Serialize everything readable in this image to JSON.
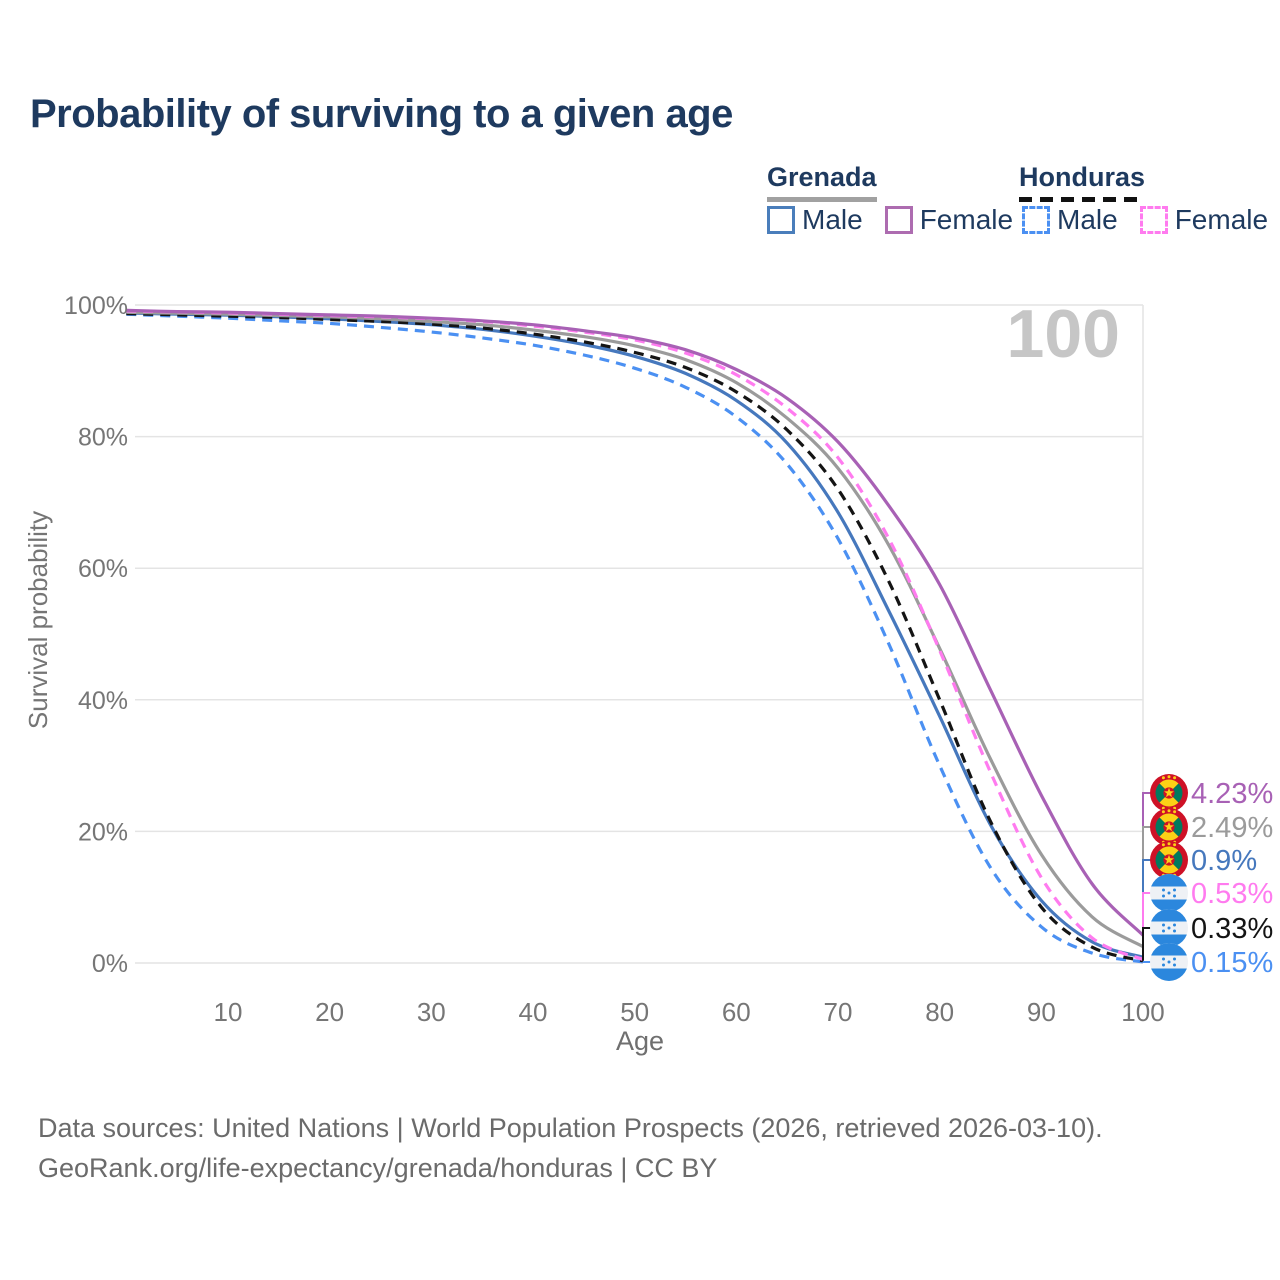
{
  "title": "Probability of surviving to a given age",
  "watermark": "100",
  "legend": {
    "groups": [
      {
        "label": "Grenada",
        "line_style": "solid",
        "underline_color": "#a1a1a1",
        "items": [
          {
            "label": "Male",
            "color": "#4a7ebb",
            "dashed": false
          },
          {
            "label": "Female",
            "color": "#ad6cb0",
            "dashed": false
          }
        ]
      },
      {
        "label": "Honduras",
        "line_style": "dashed",
        "underline_color": "#111111",
        "items": [
          {
            "label": "Male",
            "color": "#4b90f2",
            "dashed": true
          },
          {
            "label": "Female",
            "color": "#ff7bef",
            "dashed": true
          }
        ]
      }
    ]
  },
  "chart_data": {
    "type": "line",
    "title": "Probability of surviving to a given age",
    "xlabel": "Age",
    "ylabel": "Survival probability",
    "xlim": [
      0,
      100
    ],
    "ylim": [
      0,
      100
    ],
    "grid": "horizontal",
    "x_ticks": [
      10,
      20,
      30,
      40,
      50,
      60,
      70,
      80,
      90,
      100
    ],
    "y_ticks": [
      {
        "value": 0,
        "label": "0%"
      },
      {
        "value": 20,
        "label": "20%"
      },
      {
        "value": 40,
        "label": "40%"
      },
      {
        "value": 60,
        "label": "60%"
      },
      {
        "value": 80,
        "label": "80%"
      },
      {
        "value": 100,
        "label": "100%"
      }
    ],
    "ages": [
      0,
      5,
      10,
      15,
      20,
      25,
      30,
      35,
      40,
      45,
      50,
      55,
      60,
      65,
      70,
      75,
      80,
      85,
      90,
      95,
      100
    ],
    "series": [
      {
        "id": "honduras-male",
        "name": "Honduras Male",
        "country": "Honduras",
        "flag": "honduras",
        "color": "#4b90f2",
        "dashed": true,
        "end_label": "0.15%",
        "values": [
          98.6,
          98.3,
          98.0,
          97.6,
          97.2,
          96.6,
          95.9,
          95.0,
          93.9,
          92.4,
          90.4,
          87.5,
          83.0,
          75.8,
          64.5,
          48.5,
          30.0,
          14.5,
          5.5,
          1.5,
          0.15
        ]
      },
      {
        "id": "grenada-male",
        "name": "Grenada Male",
        "country": "Grenada",
        "flag": "grenada",
        "color": "#4678bd",
        "dashed": false,
        "end_label": "0.9%",
        "values": [
          98.8,
          98.6,
          98.45,
          98.2,
          97.9,
          97.5,
          97.0,
          96.3,
          95.3,
          94.0,
          92.2,
          89.6,
          85.5,
          79.0,
          68.5,
          53.5,
          37.5,
          21.0,
          9.5,
          3.2,
          0.9
        ]
      },
      {
        "id": "honduras-all",
        "name": "Honduras",
        "country": "Honduras",
        "flag": "honduras",
        "color": "#141414",
        "dashed": true,
        "end_label": "0.33%",
        "values": [
          98.7,
          98.5,
          98.3,
          98.1,
          97.8,
          97.5,
          97.1,
          96.5,
          95.6,
          94.4,
          92.8,
          90.5,
          86.8,
          81.0,
          72.0,
          58.0,
          40.0,
          21.5,
          8.5,
          2.4,
          0.33
        ]
      },
      {
        "id": "grenada-all",
        "name": "Grenada",
        "country": "Grenada",
        "flag": "grenada",
        "color": "#9b9b9b",
        "dashed": false,
        "end_label": "2.49%",
        "values": [
          98.9,
          98.75,
          98.6,
          98.4,
          98.2,
          97.9,
          97.5,
          97.0,
          96.2,
          95.2,
          93.8,
          91.7,
          88.2,
          82.8,
          75.2,
          63.5,
          47.8,
          31.0,
          16.5,
          7.0,
          2.49
        ]
      },
      {
        "id": "honduras-female",
        "name": "Honduras Female",
        "country": "Honduras",
        "flag": "honduras",
        "color": "#ff7bef",
        "dashed": true,
        "end_label": "0.53%",
        "values": [
          99.1,
          98.95,
          98.8,
          98.6,
          98.4,
          98.2,
          97.9,
          97.5,
          96.8,
          95.9,
          94.7,
          92.7,
          89.4,
          84.3,
          76.8,
          64.5,
          47.5,
          29.0,
          13.0,
          3.8,
          0.53
        ]
      },
      {
        "id": "grenada-female",
        "name": "Grenada Female",
        "country": "Grenada",
        "flag": "grenada",
        "color": "#a861b5",
        "dashed": false,
        "end_label": "4.23%",
        "values": [
          99.2,
          99.0,
          98.9,
          98.7,
          98.5,
          98.3,
          98.0,
          97.6,
          97.0,
          96.1,
          95.0,
          93.2,
          90.2,
          85.8,
          79.2,
          69.5,
          57.5,
          41.5,
          25.5,
          12.0,
          4.23
        ]
      }
    ],
    "legend_position": "top-right",
    "annotation_age_counter": "100"
  },
  "footer": {
    "line1": "Data sources: United Nations | World Population Prospects (2026, retrieved 2026-03-10).",
    "line2": "GeoRank.org/life-expectancy/grenada/honduras | CC BY"
  }
}
